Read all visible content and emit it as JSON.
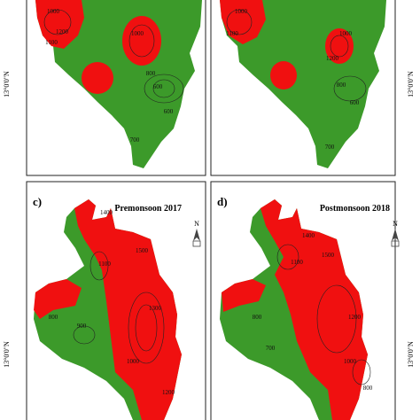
{
  "north": "N",
  "panels": [
    {
      "lat_label": "13°0'0\"N",
      "contour_labels": [
        "1000",
        "1200",
        "1100",
        "1000",
        "800",
        "600",
        "600",
        "700"
      ]
    },
    {
      "lat_label": "13°0'0\"N",
      "contour_labels": [
        "1000",
        "1100",
        "1000",
        "1200",
        "800",
        "600",
        "700"
      ]
    },
    {
      "label": "c)",
      "title": "Premonsoon 2017",
      "lat_label": "13°0'0\"N",
      "contour_labels": [
        "1400",
        "1100",
        "1500",
        "900",
        "800",
        "1300",
        "1000",
        "1200"
      ]
    },
    {
      "label": "d)",
      "title": "Postmonsoon 2018",
      "lat_label": "13°0'0\"N",
      "contour_labels": [
        "1400",
        "1100",
        "1500",
        "700",
        "800",
        "1200",
        "1000",
        "800"
      ]
    }
  ]
}
